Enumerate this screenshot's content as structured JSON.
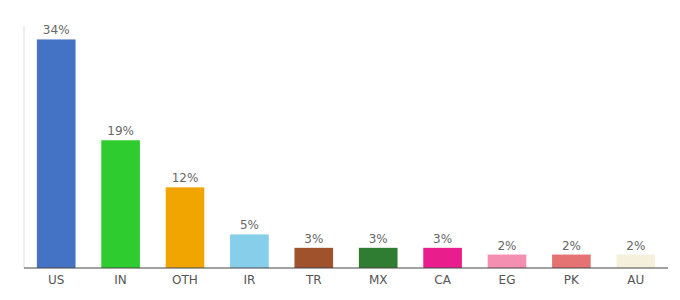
{
  "chart_data": {
    "type": "bar",
    "categories": [
      "US",
      "IN",
      "OTH",
      "IR",
      "TR",
      "MX",
      "CA",
      "EG",
      "PK",
      "AU"
    ],
    "values": [
      34,
      19,
      12,
      5,
      3,
      3,
      3,
      2,
      2,
      2
    ],
    "value_labels": [
      "34%",
      "19%",
      "12%",
      "5%",
      "3%",
      "3%",
      "3%",
      "2%",
      "2%",
      "2%"
    ],
    "colors": [
      "#4472c4",
      "#2ecc2e",
      "#f0a500",
      "#87ceeb",
      "#a0522d",
      "#2e7d32",
      "#e91e8c",
      "#f48fb1",
      "#e57373",
      "#f5f0dc"
    ],
    "ylim": [
      0,
      36
    ],
    "grid": false,
    "data_labels": true,
    "tick_labels": "x"
  }
}
